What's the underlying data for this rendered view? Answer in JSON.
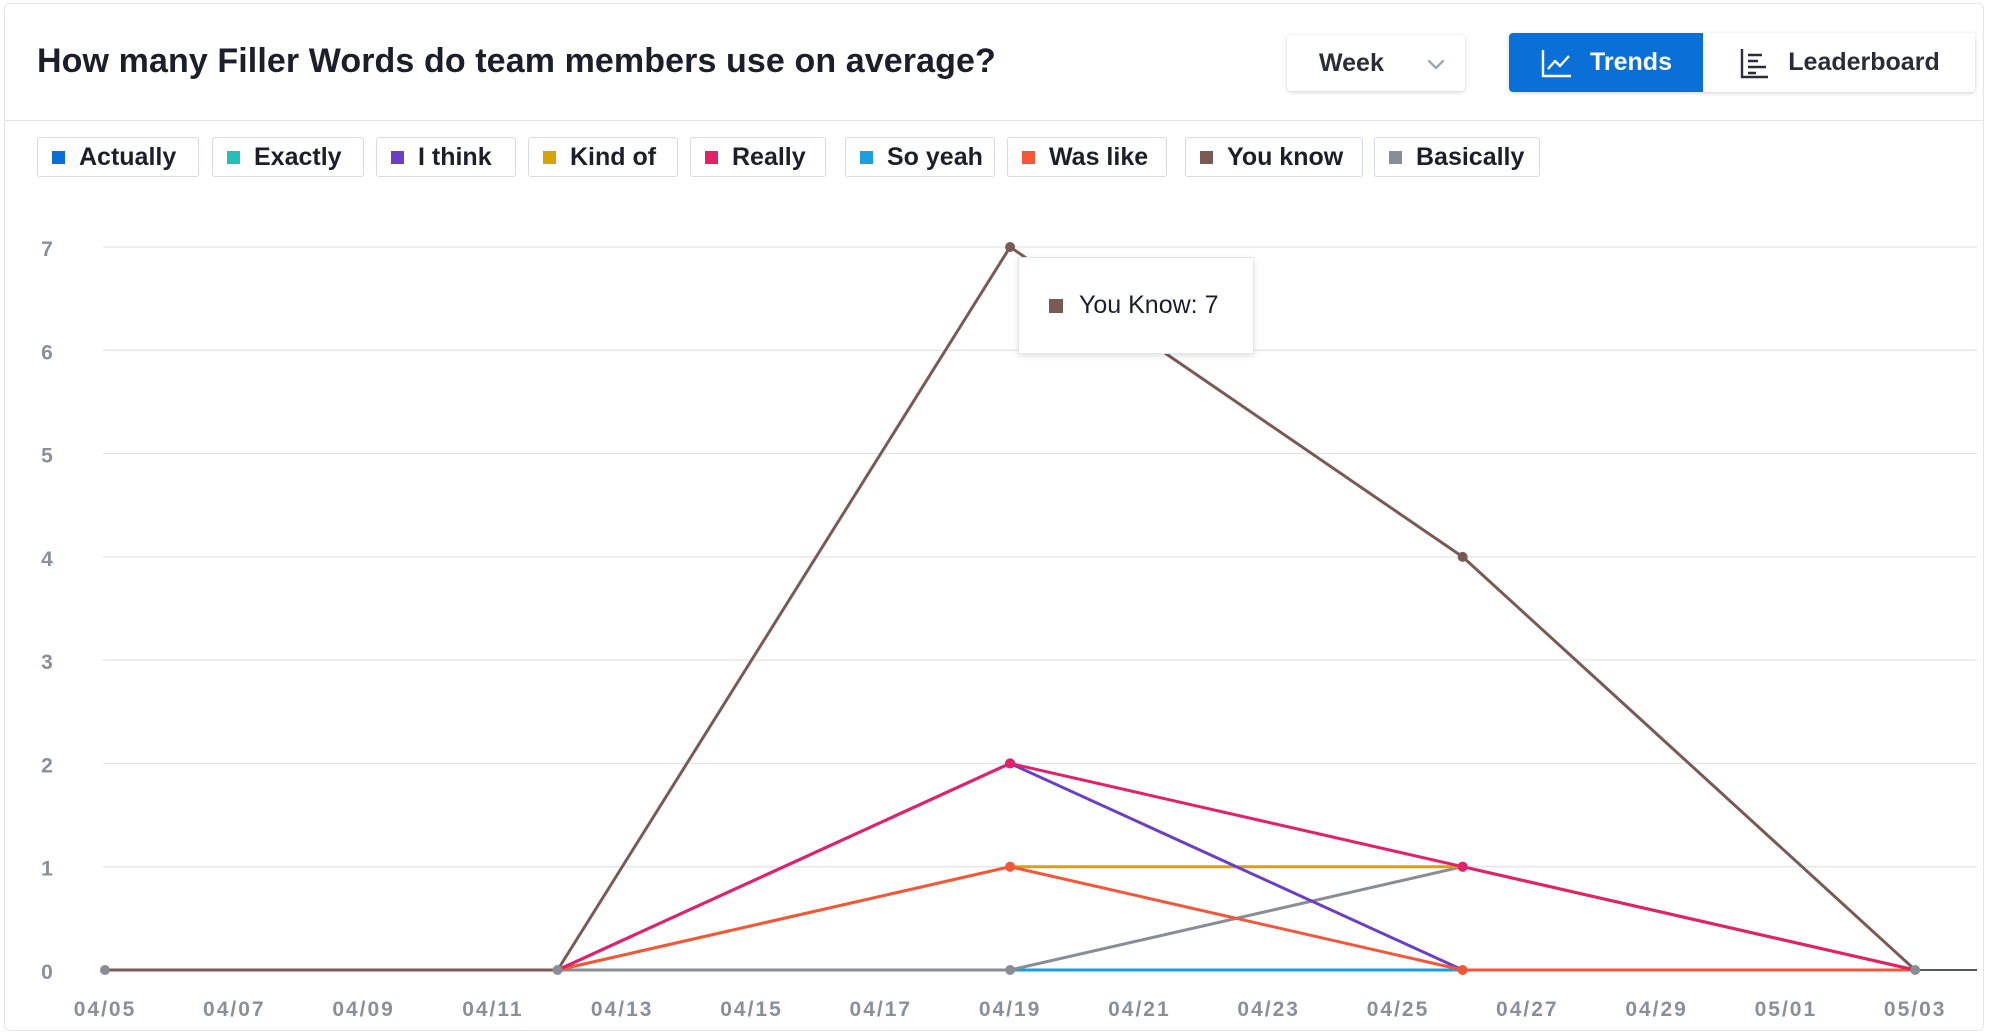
{
  "header": {
    "title": "How many Filler Words do team members use on average?",
    "period_select": {
      "value": "Week",
      "icon": "chevron-down-icon"
    },
    "view_toggle": {
      "trends_label": "Trends",
      "trends_icon": "line-chart-icon",
      "leaderboard_label": "Leaderboard",
      "leaderboard_icon": "bar-list-icon",
      "active": "Trends",
      "active_color": "#0b6fd8"
    }
  },
  "tooltip": {
    "series": "You Know",
    "value": "7",
    "color": "#7a5a55"
  },
  "chart_data": {
    "type": "line",
    "title": "",
    "xlabel": "",
    "ylabel": "",
    "ylim": [
      0,
      7
    ],
    "yticks": [
      0,
      1,
      2,
      3,
      4,
      5,
      6,
      7
    ],
    "x_tick_labels": [
      "04/05",
      "04/07",
      "04/09",
      "04/11",
      "04/13",
      "04/15",
      "04/17",
      "04/19",
      "04/21",
      "04/23",
      "04/25",
      "04/27",
      "04/29",
      "05/01",
      "05/03"
    ],
    "x_points": [
      "04/05",
      "04/12",
      "04/19",
      "04/26",
      "05/03"
    ],
    "grid": true,
    "legend_position": "top-left",
    "series": [
      {
        "name": "Actually",
        "color": "#0b6fd8",
        "values": [
          0,
          0,
          0,
          0,
          0
        ]
      },
      {
        "name": "Exactly",
        "color": "#22c0b9",
        "values": [
          0,
          0,
          0,
          0,
          0
        ]
      },
      {
        "name": "I think",
        "color": "#6a3fc4",
        "values": [
          0,
          0,
          2,
          0,
          0
        ]
      },
      {
        "name": "Kind of",
        "color": "#d9a20b",
        "values": [
          0,
          0,
          1,
          1,
          0
        ]
      },
      {
        "name": "Really",
        "color": "#e3206a",
        "values": [
          0,
          0,
          2,
          1,
          0
        ]
      },
      {
        "name": "So yeah",
        "color": "#1a9fe0",
        "values": [
          0,
          0,
          0,
          0,
          0
        ]
      },
      {
        "name": "Was like",
        "color": "#f5563a",
        "values": [
          0,
          0,
          1,
          0,
          0
        ]
      },
      {
        "name": "You know",
        "color": "#7a5a55",
        "values": [
          0,
          0,
          7,
          4,
          0
        ]
      },
      {
        "name": "Basically",
        "color": "#888e96",
        "values": [
          0,
          0,
          0,
          1,
          0
        ]
      }
    ]
  }
}
